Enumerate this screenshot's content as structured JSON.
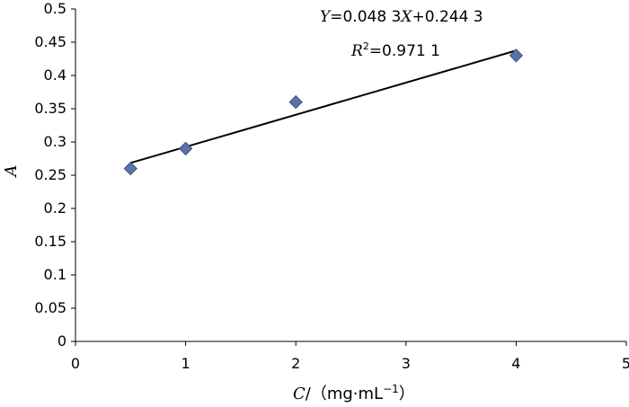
{
  "chart_data": {
    "type": "scatter",
    "x": [
      0.5,
      1,
      2,
      4
    ],
    "y": [
      0.26,
      0.29,
      0.36,
      0.43
    ],
    "xlim": [
      0,
      5
    ],
    "ylim": [
      0,
      0.5
    ],
    "x_ticks": [
      "0",
      "1",
      "2",
      "3",
      "4",
      "5"
    ],
    "y_ticks": [
      "0",
      "0.05",
      "0.1",
      "0.15",
      "0.2",
      "0.25",
      "0.3",
      "0.35",
      "0.4",
      "0.45",
      "0.5"
    ],
    "xlabel": {
      "var": "C",
      "unit": "/（mg·mL",
      "exp": "−1",
      "close": "）"
    },
    "ylabel": "A",
    "trendline": {
      "type": "linear",
      "slope": 0.0483,
      "intercept": 0.2443,
      "x_range": [
        0.5,
        4
      ]
    },
    "equation": {
      "y_var": "Y",
      "mid": "=0.048 3",
      "x_var": "X",
      "tail": "+0.244 3"
    },
    "r2": {
      "var": "R",
      "sup": "2",
      "value": "=0.971 1"
    },
    "grid": false,
    "legend": "none",
    "marker_shape": "diamond",
    "marker_color": "#5B72A6",
    "marker_stroke": "#3F5488",
    "line_color": "#000000"
  }
}
